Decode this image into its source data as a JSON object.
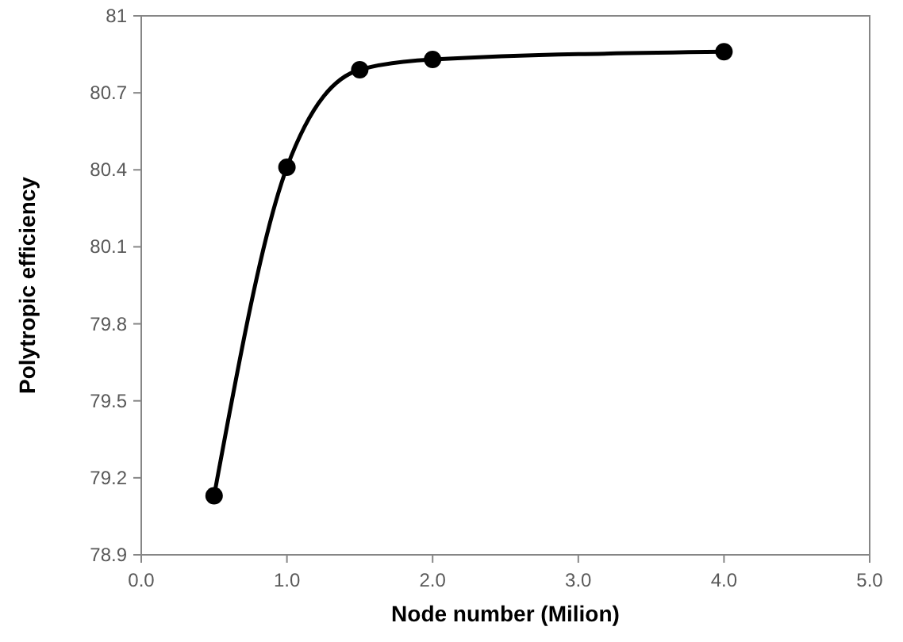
{
  "chart_data": {
    "type": "line",
    "xlabel": "Node number (Milion)",
    "ylabel": "Polytropic efficiency",
    "x": [
      0.5,
      1.0,
      1.5,
      2.0,
      4.0
    ],
    "series": [
      {
        "color": "#000000",
        "values": [
          79.13,
          80.41,
          80.79,
          80.83,
          80.86
        ]
      }
    ],
    "xlim": [
      0,
      5
    ],
    "xticks": [
      {
        "value": 0,
        "label": "0.0"
      },
      {
        "value": 1,
        "label": "1.0"
      },
      {
        "value": 2,
        "label": "2.0"
      },
      {
        "value": 3,
        "label": "3.0"
      },
      {
        "value": 4,
        "label": "4.0"
      },
      {
        "value": 5,
        "label": "5.0"
      }
    ],
    "ylim": [
      78.9,
      81
    ],
    "yticks": [
      78.9,
      79.2,
      79.5,
      79.8,
      80.1,
      80.4,
      80.7,
      81
    ],
    "marker": "circle",
    "line_style": "solid"
  }
}
